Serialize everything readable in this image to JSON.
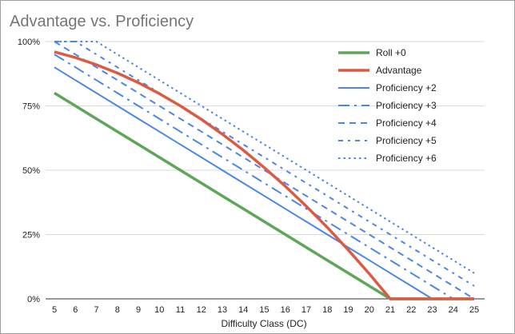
{
  "chart_data": {
    "type": "line",
    "title": "Advantage vs. Proficiency",
    "xlabel": "Difficulty Class (DC)",
    "ylabel": "",
    "x": [
      5,
      6,
      7,
      8,
      9,
      10,
      11,
      12,
      13,
      14,
      15,
      16,
      17,
      18,
      19,
      20,
      21,
      22,
      23,
      24,
      25
    ],
    "ylim": [
      0,
      1
    ],
    "yticks": [
      0,
      0.25,
      0.5,
      0.75,
      1
    ],
    "ytick_labels": [
      "0%",
      "25%",
      "50%",
      "75%",
      "100%"
    ],
    "grid": true,
    "legend_position": "top-right",
    "series": [
      {
        "name": "Roll +0",
        "color": "#5ea65a",
        "style": "solid-thick",
        "values": [
          0.8,
          0.75,
          0.7,
          0.65,
          0.6,
          0.55,
          0.5,
          0.45,
          0.4,
          0.35,
          0.3,
          0.25,
          0.2,
          0.15,
          0.1,
          0.05,
          0,
          0,
          0,
          0,
          0
        ]
      },
      {
        "name": "Advantage",
        "color": "#dc5a42",
        "style": "solid-thick",
        "values": [
          0.96,
          0.9375,
          0.91,
          0.8775,
          0.84,
          0.7975,
          0.75,
          0.6975,
          0.64,
          0.5775,
          0.51,
          0.4375,
          0.36,
          0.2775,
          0.19,
          0.0975,
          0,
          0,
          0,
          0,
          0
        ]
      },
      {
        "name": "Proficiency +2",
        "color": "#4a86e8",
        "style": "solid",
        "values": [
          0.9,
          0.85,
          0.8,
          0.75,
          0.7,
          0.65,
          0.6,
          0.55,
          0.5,
          0.45,
          0.4,
          0.35,
          0.3,
          0.25,
          0.2,
          0.15,
          0.1,
          0.05,
          0,
          0,
          0
        ]
      },
      {
        "name": "Proficiency +3",
        "color": "#4a86e8",
        "style": "long-dash-dot",
        "values": [
          0.95,
          0.9,
          0.85,
          0.8,
          0.75,
          0.7,
          0.65,
          0.6,
          0.55,
          0.5,
          0.45,
          0.4,
          0.35,
          0.3,
          0.25,
          0.2,
          0.15,
          0.1,
          0.05,
          0,
          0
        ]
      },
      {
        "name": "Proficiency +4",
        "color": "#4a86e8",
        "style": "dash",
        "values": [
          1,
          0.95,
          0.9,
          0.85,
          0.8,
          0.75,
          0.7,
          0.65,
          0.6,
          0.55,
          0.5,
          0.45,
          0.4,
          0.35,
          0.3,
          0.25,
          0.2,
          0.15,
          0.1,
          0.05,
          0
        ]
      },
      {
        "name": "Proficiency +5",
        "color": "#4a86e8",
        "style": "dash-dot",
        "values": [
          1,
          1,
          0.95,
          0.9,
          0.85,
          0.8,
          0.75,
          0.7,
          0.65,
          0.6,
          0.55,
          0.5,
          0.45,
          0.4,
          0.35,
          0.3,
          0.25,
          0.2,
          0.15,
          0.1,
          0.05
        ]
      },
      {
        "name": "Proficiency +6",
        "color": "#4a86e8",
        "style": "dot",
        "values": [
          1,
          1,
          1,
          0.95,
          0.9,
          0.85,
          0.8,
          0.75,
          0.7,
          0.65,
          0.6,
          0.55,
          0.5,
          0.45,
          0.4,
          0.35,
          0.3,
          0.25,
          0.2,
          0.15,
          0.1
        ]
      }
    ]
  }
}
